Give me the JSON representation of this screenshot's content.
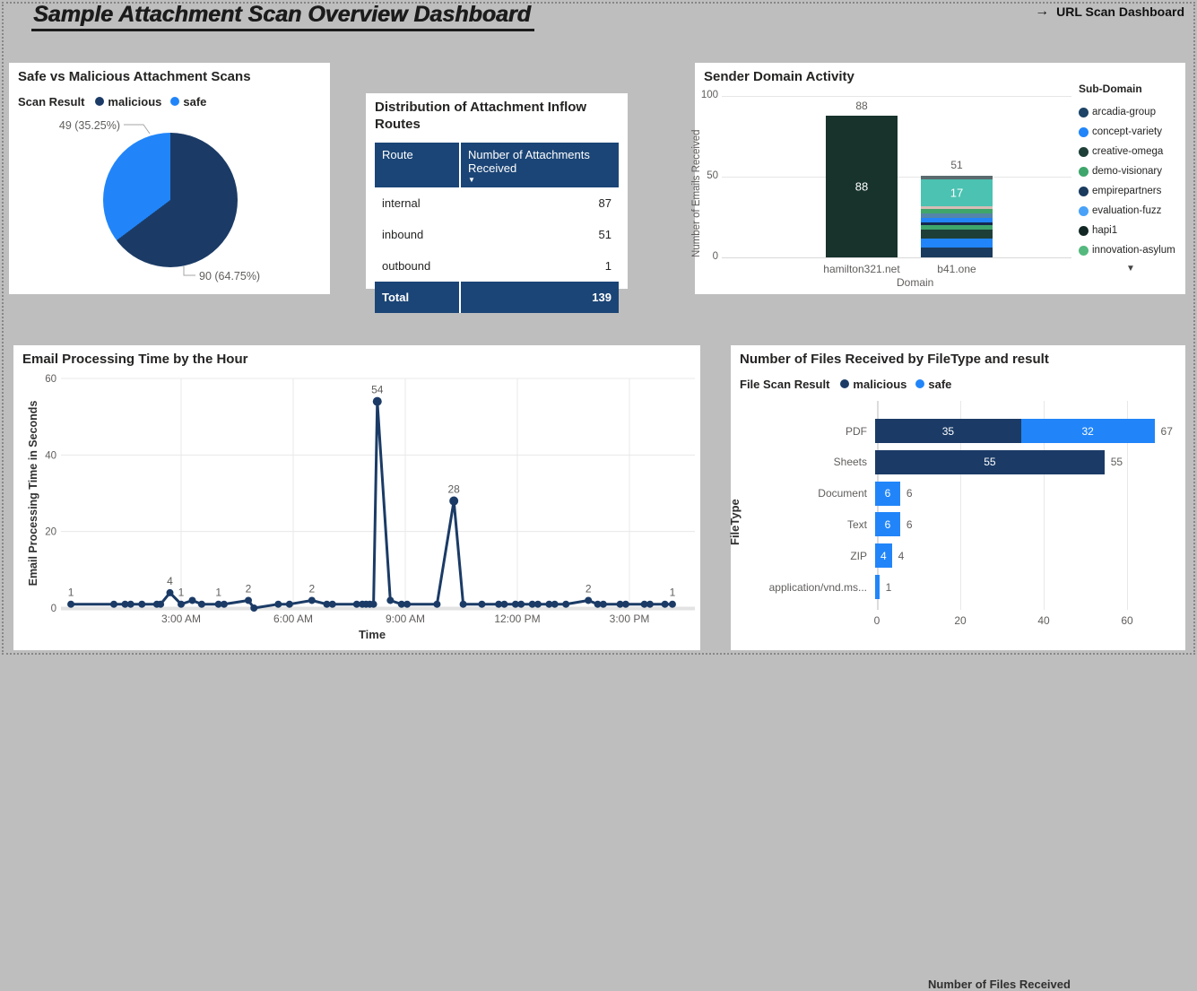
{
  "page": {
    "title": "Sample Attachment Scan Overview Dashboard",
    "nav_arrow": "→",
    "nav_label": "URL Scan Dashboard",
    "background": "#BEBEBE"
  },
  "colors": {
    "malicious": "#1B3B66",
    "safe": "#2185F9",
    "panel_background": "#FFFFFF",
    "axis_text": "#605E5C",
    "title_text": "#252423",
    "grid": "#E6E6E6",
    "table_header": "#1B4576"
  },
  "chart_data": [
    {
      "type": "pie",
      "title": "Safe vs Malicious Attachment Scans",
      "legend_title": "Scan Result",
      "legend_position": "top",
      "legend": [
        {
          "label": "malicious",
          "color": "#1B3B66"
        },
        {
          "label": "safe",
          "color": "#2185F9"
        }
      ],
      "slices": [
        {
          "name": "malicious",
          "value": 90,
          "pct": 64.75,
          "color": "#1B3B66",
          "callout": "90 (64.75%)"
        },
        {
          "name": "safe",
          "value": 49,
          "pct": 35.25,
          "color": "#2185F9",
          "callout": "49 (35.25%)"
        }
      ]
    },
    {
      "type": "table",
      "title": "Distribution of Attachment Inflow Routes",
      "columns": [
        "Route",
        "Number of Attachments Received"
      ],
      "sort_icon": "▼",
      "rows": [
        [
          "internal",
          "87"
        ],
        [
          "inbound",
          "51"
        ],
        [
          "outbound",
          "1"
        ]
      ],
      "total": [
        "Total",
        "139"
      ]
    },
    {
      "type": "bar",
      "title": "Sender Domain Activity",
      "xlabel": "Domain",
      "ylabel": "Number of Emails Received",
      "ylim": [
        0,
        100
      ],
      "y_ticks": [
        100,
        50,
        0
      ],
      "grid": true,
      "legend_title": "Sub-Domain",
      "legend_position": "right",
      "legend_more_icon": "▼",
      "legend": [
        {
          "label": "arcadia-group",
          "color": "#1D4466"
        },
        {
          "label": "concept-variety",
          "color": "#2185F9"
        },
        {
          "label": "creative-omega",
          "color": "#1E3F38"
        },
        {
          "label": "demo-visionary",
          "color": "#3EA66B"
        },
        {
          "label": "empirepartners",
          "color": "#1B3B5E"
        },
        {
          "label": "evaluation-fuzz",
          "color": "#49A2F8"
        },
        {
          "label": "hapi1",
          "color": "#122723"
        },
        {
          "label": "innovation-asylum",
          "color": "#55B97E"
        }
      ],
      "categories": [
        "hamilton321.net",
        "b41.one"
      ],
      "bars": [
        {
          "category": "hamilton321.net",
          "total": 88,
          "segments": [
            {
              "value": 88,
              "color": "#17332C",
              "label": "88"
            }
          ]
        },
        {
          "category": "b41.one",
          "total": 51,
          "segments": [
            {
              "value": 6,
              "color": "#1B3B5E"
            },
            {
              "value": 5.5,
              "color": "#2185F9"
            },
            {
              "value": 6,
              "color": "#1E3F38"
            },
            {
              "value": 2.5,
              "color": "#3EA66B"
            },
            {
              "value": 1.5,
              "color": "#16294F"
            },
            {
              "value": 3,
              "color": "#2185F9"
            },
            {
              "value": 3,
              "color": "#5585A8"
            },
            {
              "value": 2.5,
              "color": "#3EA66B"
            },
            {
              "value": 1.5,
              "color": "#D8BCB6"
            },
            {
              "value": 17,
              "color": "#4BC2B2",
              "label": "17"
            },
            {
              "value": 2,
              "color": "#5A6B6E"
            }
          ]
        }
      ]
    },
    {
      "type": "line",
      "title": "Email Processing Time by the Hour",
      "xlabel": "Time",
      "ylabel": "Email Processing Time in Seconds",
      "ylim": [
        0,
        60
      ],
      "y_ticks": [
        60,
        40,
        20,
        0
      ],
      "grid": true,
      "line_color": "#1B3B66",
      "x_ticks": [
        {
          "h": 3,
          "label": "3:00 AM"
        },
        {
          "h": 6,
          "label": "6:00 AM"
        },
        {
          "h": 9,
          "label": "9:00 AM"
        },
        {
          "h": 12,
          "label": "12:00 PM"
        },
        {
          "h": 15,
          "label": "3:00 PM"
        }
      ],
      "points": [
        {
          "h": 0.05,
          "v": 1,
          "label": "1"
        },
        {
          "h": 1.2,
          "v": 1
        },
        {
          "h": 1.5,
          "v": 1
        },
        {
          "h": 1.65,
          "v": 1
        },
        {
          "h": 1.95,
          "v": 1
        },
        {
          "h": 2.35,
          "v": 1
        },
        {
          "h": 2.45,
          "v": 1
        },
        {
          "h": 2.7,
          "v": 4,
          "label": "4"
        },
        {
          "h": 3.0,
          "v": 1,
          "label": "1"
        },
        {
          "h": 3.3,
          "v": 2
        },
        {
          "h": 3.55,
          "v": 1
        },
        {
          "h": 4.0,
          "v": 1,
          "label": "1"
        },
        {
          "h": 4.15,
          "v": 1
        },
        {
          "h": 4.8,
          "v": 2,
          "label": "2"
        },
        {
          "h": 4.95,
          "v": 0
        },
        {
          "h": 5.6,
          "v": 1
        },
        {
          "h": 5.9,
          "v": 1
        },
        {
          "h": 6.5,
          "v": 2,
          "label": "2"
        },
        {
          "h": 6.9,
          "v": 1
        },
        {
          "h": 7.05,
          "v": 1
        },
        {
          "h": 7.7,
          "v": 1
        },
        {
          "h": 7.85,
          "v": 1
        },
        {
          "h": 7.95,
          "v": 1
        },
        {
          "h": 8.05,
          "v": 1
        },
        {
          "h": 8.15,
          "v": 1
        },
        {
          "h": 8.25,
          "v": 54,
          "label": "54"
        },
        {
          "h": 8.6,
          "v": 2
        },
        {
          "h": 8.9,
          "v": 1
        },
        {
          "h": 9.05,
          "v": 1
        },
        {
          "h": 9.85,
          "v": 1
        },
        {
          "h": 10.3,
          "v": 28,
          "label": "28"
        },
        {
          "h": 10.55,
          "v": 1
        },
        {
          "h": 11.05,
          "v": 1
        },
        {
          "h": 11.5,
          "v": 1
        },
        {
          "h": 11.65,
          "v": 1
        },
        {
          "h": 11.95,
          "v": 1
        },
        {
          "h": 12.1,
          "v": 1
        },
        {
          "h": 12.4,
          "v": 1
        },
        {
          "h": 12.55,
          "v": 1
        },
        {
          "h": 12.85,
          "v": 1
        },
        {
          "h": 13.0,
          "v": 1
        },
        {
          "h": 13.3,
          "v": 1
        },
        {
          "h": 13.9,
          "v": 2,
          "label": "2"
        },
        {
          "h": 14.15,
          "v": 1
        },
        {
          "h": 14.3,
          "v": 1
        },
        {
          "h": 14.75,
          "v": 1
        },
        {
          "h": 14.9,
          "v": 1
        },
        {
          "h": 15.4,
          "v": 1
        },
        {
          "h": 15.55,
          "v": 1
        },
        {
          "h": 15.95,
          "v": 1
        },
        {
          "h": 16.15,
          "v": 1,
          "label": "1"
        }
      ]
    },
    {
      "type": "bar",
      "orientation": "horizontal",
      "title": "Number of Files Received by FileType and result",
      "legend_title": "File Scan Result",
      "legend_position": "top",
      "legend": [
        {
          "label": "malicious",
          "color": "#1B3B66"
        },
        {
          "label": "safe",
          "color": "#2185F9"
        }
      ],
      "xlabel": "Number of Files Received",
      "ylabel": "FileType",
      "xlim": [
        0,
        67
      ],
      "x_ticks": [
        0,
        20,
        40,
        60
      ],
      "grid": true,
      "categories": [
        "PDF",
        "Sheets",
        "Document",
        "Text",
        "ZIP",
        "application/vnd.ms..."
      ],
      "series": [
        {
          "name": "malicious",
          "color": "#1B3B66",
          "values": [
            35,
            55,
            0,
            0,
            0,
            0
          ]
        },
        {
          "name": "safe",
          "color": "#2185F9",
          "values": [
            32,
            0,
            6,
            6,
            4,
            1
          ]
        }
      ],
      "totals": [
        67,
        55,
        6,
        6,
        4,
        1
      ]
    }
  ]
}
